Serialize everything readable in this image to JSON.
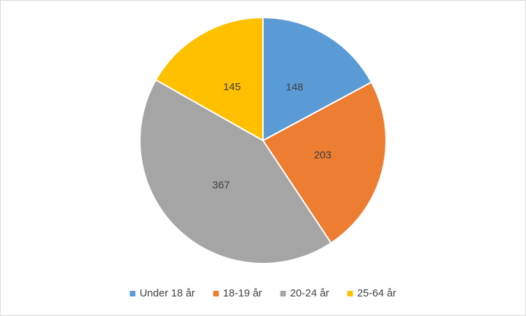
{
  "chart_data": {
    "type": "pie",
    "categories": [
      "Under 18 år",
      "18-19 år",
      "20-24 år",
      "25-64 år"
    ],
    "values": [
      148,
      203,
      367,
      145
    ],
    "colors": [
      "#5b9bd5",
      "#ed7d31",
      "#a5a5a5",
      "#ffc000"
    ],
    "legend": "bottom"
  }
}
